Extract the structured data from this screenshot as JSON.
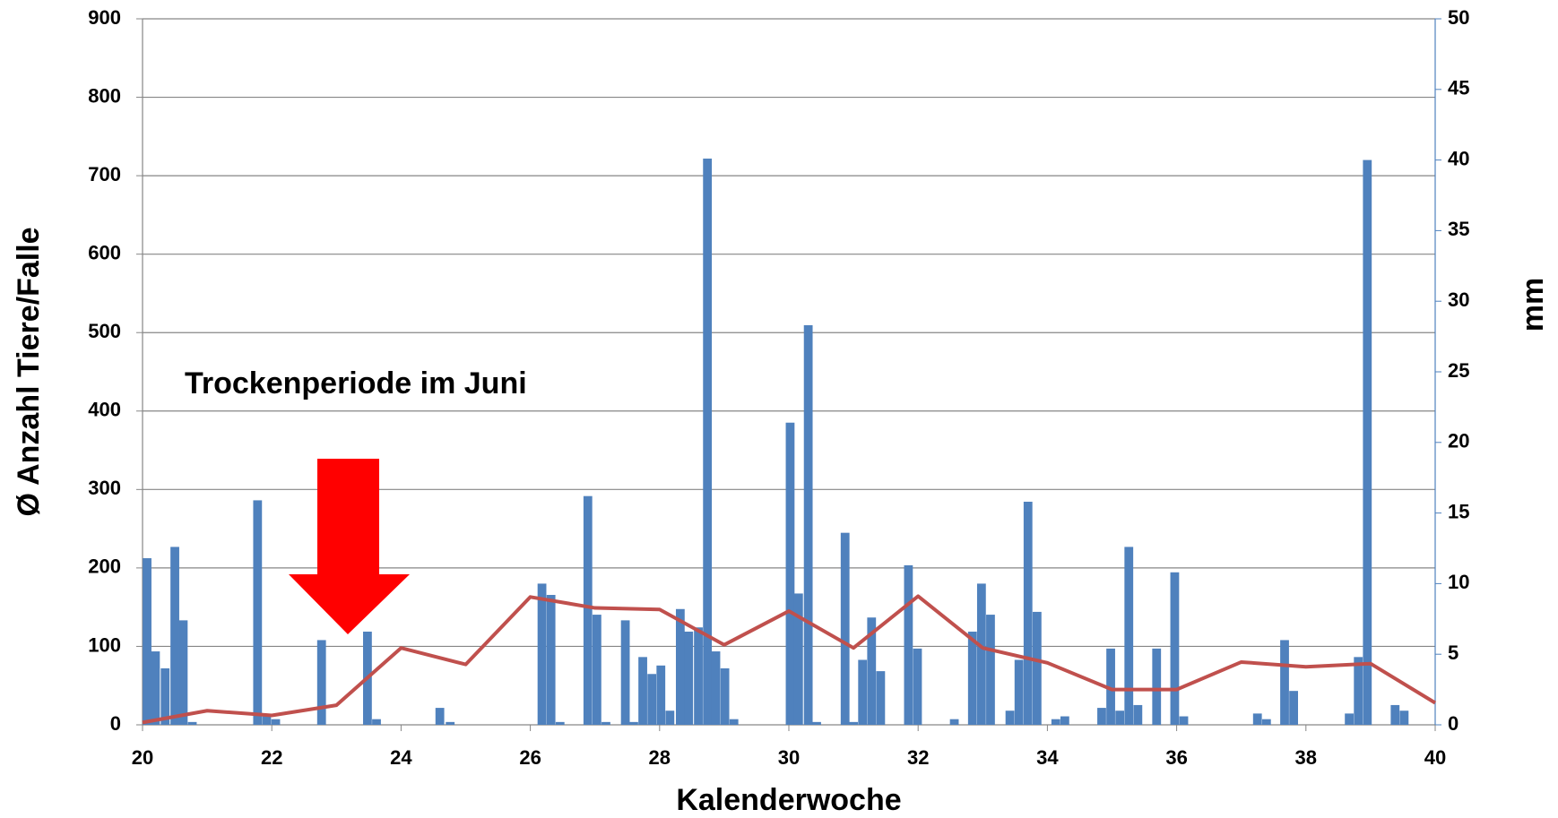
{
  "chart_data": {
    "type": "bar-line",
    "xlabel": "Kalenderwoche",
    "ylabel": "Ø Anzahl Tiere/Falle",
    "y2label": "mm",
    "annotation": "Trockenperiode im Juni",
    "xlim": [
      20,
      40
    ],
    "xticks": [
      20,
      22,
      24,
      26,
      28,
      30,
      32,
      34,
      36,
      38,
      40
    ],
    "ylim": [
      0,
      900
    ],
    "yticks": [
      0,
      100,
      200,
      300,
      400,
      500,
      600,
      700,
      800,
      900
    ],
    "y2lim": [
      0,
      50
    ],
    "y2ticks": [
      0,
      5,
      10,
      15,
      20,
      25,
      30,
      35,
      40,
      45,
      50
    ],
    "grid": true,
    "series": [
      {
        "type": "bar",
        "axis": "y2",
        "color": "#4f81bd",
        "x": [
          20.07,
          20.2,
          20.35,
          20.5,
          20.63,
          20.77,
          21.78,
          21.92,
          22.06,
          22.77,
          23.48,
          23.62,
          24.6,
          24.76,
          26.18,
          26.32,
          26.46,
          26.89,
          27.03,
          27.17,
          27.47,
          27.6,
          27.74,
          27.88,
          28.02,
          28.16,
          28.32,
          28.45,
          28.6,
          28.74,
          28.87,
          29.01,
          29.15,
          30.02,
          30.15,
          30.3,
          30.43,
          30.87,
          31.0,
          31.14,
          31.28,
          31.42,
          31.85,
          31.99,
          32.56,
          32.84,
          32.98,
          33.12,
          33.42,
          33.56,
          33.7,
          33.84,
          34.13,
          34.27,
          34.84,
          34.98,
          35.12,
          35.26,
          35.4,
          35.69,
          35.97,
          36.11,
          37.25,
          37.39,
          37.67,
          37.81,
          38.67,
          38.81,
          38.95,
          39.38,
          39.52
        ],
        "values": [
          11.8,
          5.2,
          4.0,
          12.6,
          7.4,
          0.2,
          15.9,
          0.6,
          0.4,
          6.0,
          6.6,
          0.4,
          1.2,
          0.2,
          10.0,
          9.2,
          0.2,
          16.2,
          7.8,
          0.2,
          7.4,
          0.2,
          4.8,
          3.6,
          4.2,
          1.0,
          8.2,
          6.6,
          6.9,
          40.1,
          5.2,
          4.0,
          0.4,
          21.4,
          9.3,
          28.3,
          0.2,
          13.6,
          0.2,
          4.6,
          7.6,
          3.8,
          11.3,
          5.4,
          0.4,
          6.6,
          10.0,
          7.8,
          1.0,
          4.6,
          15.8,
          8.0,
          0.4,
          0.6,
          1.2,
          5.4,
          1.0,
          12.6,
          1.4,
          5.4,
          10.8,
          0.6,
          0.8,
          0.4,
          6.0,
          2.4,
          0.8,
          4.8,
          40.0,
          1.4,
          1.0
        ]
      },
      {
        "type": "line",
        "axis": "y",
        "color": "#c0504d",
        "x": [
          20,
          21,
          22,
          23,
          24,
          25,
          26,
          27,
          28,
          29,
          30,
          31,
          32,
          33,
          34,
          35,
          36,
          37,
          38,
          39,
          40
        ],
        "values": [
          3,
          18,
          12,
          25,
          98,
          77,
          163,
          149,
          147,
          102,
          145,
          98,
          164,
          98,
          79,
          45,
          45,
          80,
          74,
          78,
          28
        ]
      }
    ]
  }
}
